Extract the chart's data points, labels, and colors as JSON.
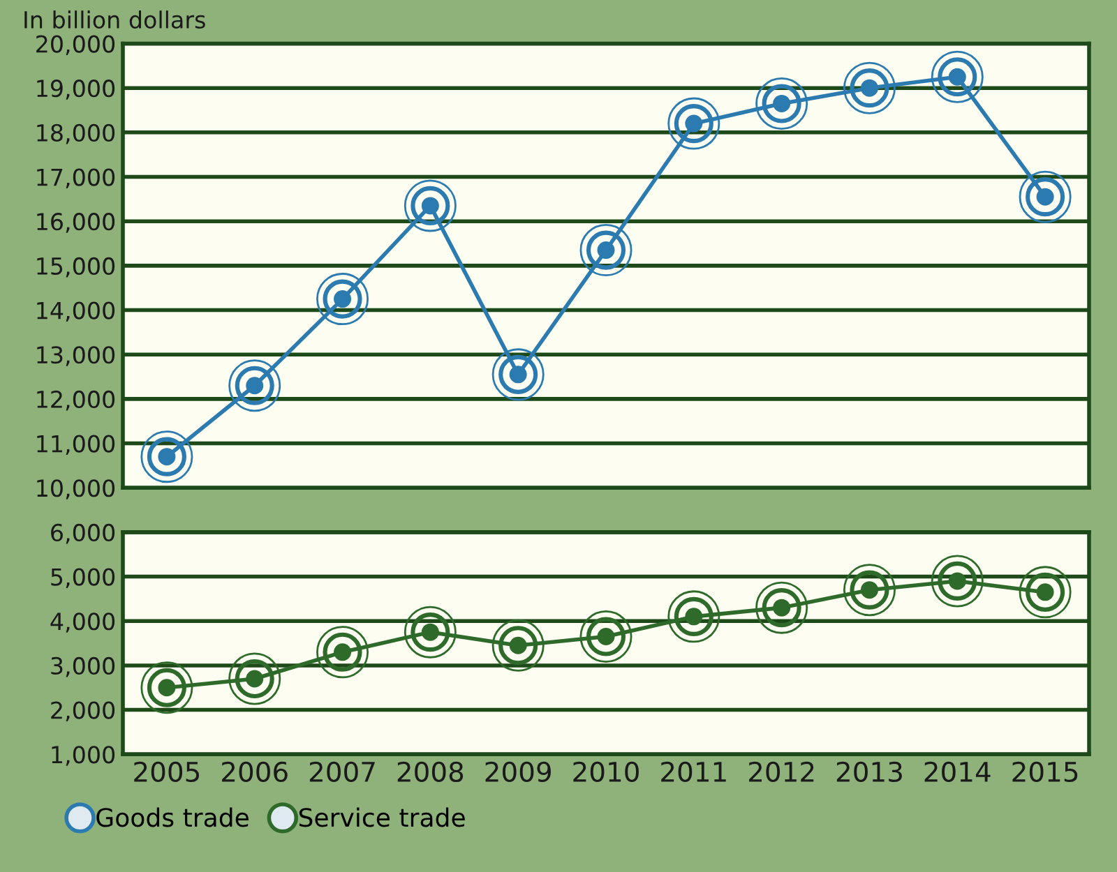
{
  "chart_data": [
    {
      "type": "line",
      "ylabel": "In billion dollars",
      "categories": [
        "2005",
        "2006",
        "2007",
        "2008",
        "2009",
        "2010",
        "2011",
        "2012",
        "2013",
        "2014",
        "2015"
      ],
      "series": [
        {
          "name": "Goods trade",
          "color": "#2b7bb0",
          "values": [
            10700,
            12300,
            14250,
            16350,
            12550,
            15350,
            18200,
            18650,
            19000,
            19250,
            16550
          ]
        }
      ],
      "ylim": [
        10000,
        20000
      ],
      "yticks": [
        {
          "value": 10000,
          "label": "10,000"
        },
        {
          "value": 11000,
          "label": "11,000"
        },
        {
          "value": 12000,
          "label": "12,000"
        },
        {
          "value": 13000,
          "label": "13,000"
        },
        {
          "value": 14000,
          "label": "14,000"
        },
        {
          "value": 15000,
          "label": "15,000"
        },
        {
          "value": 16000,
          "label": "16,000"
        },
        {
          "value": 17000,
          "label": "17,000"
        },
        {
          "value": 18000,
          "label": "18,000"
        },
        {
          "value": 19000,
          "label": "19,000"
        },
        {
          "value": 20000,
          "label": "20,000"
        }
      ],
      "tick_labels": "y",
      "grid": "y",
      "marker": "circle",
      "line_style": "solid"
    },
    {
      "type": "line",
      "categories": [
        "2005",
        "2006",
        "2007",
        "2008",
        "2009",
        "2010",
        "2011",
        "2012",
        "2013",
        "2014",
        "2015"
      ],
      "series": [
        {
          "name": "Service trade",
          "color": "#2e6b2a",
          "values": [
            2500,
            2700,
            3300,
            3750,
            3450,
            3650,
            4100,
            4300,
            4700,
            4900,
            4650
          ]
        }
      ],
      "ylim": [
        1000,
        6000
      ],
      "yticks": [
        {
          "value": 1000,
          "label": "1,000"
        },
        {
          "value": 2000,
          "label": "2,000"
        },
        {
          "value": 3000,
          "label": "3,000"
        },
        {
          "value": 4000,
          "label": "4,000"
        },
        {
          "value": 5000,
          "label": "5,000"
        },
        {
          "value": 6000,
          "label": "6,000"
        }
      ],
      "grid": "y",
      "legend": "bottom left",
      "marker": "circle",
      "line_style": "solid"
    }
  ]
}
